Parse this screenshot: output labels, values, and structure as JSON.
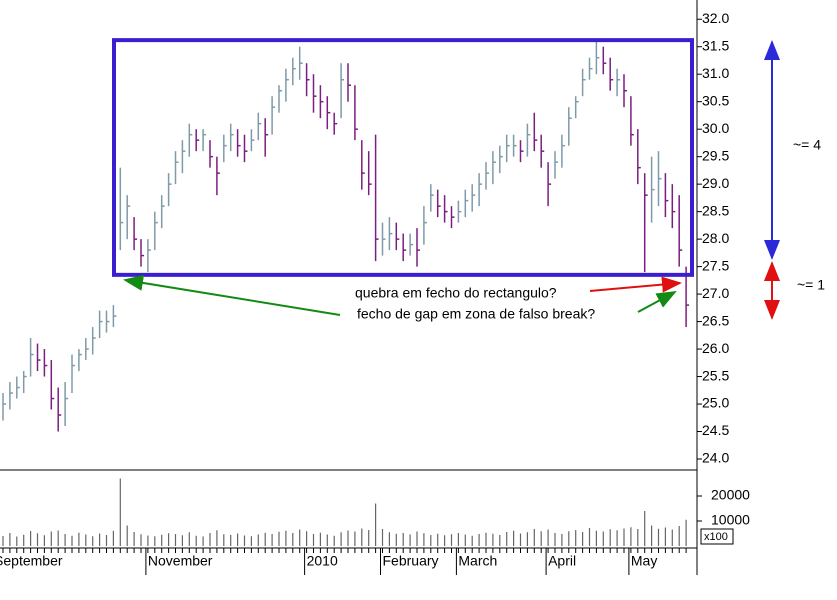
{
  "chart_data": {
    "type": "ohlc",
    "up_color": "#7f9aa8",
    "down_color": "#7a1f7f",
    "ylim": [
      23.8,
      32.35
    ],
    "yticks": [
      {
        "value": 24,
        "label": "24.0"
      },
      24.5,
      {
        "value": 25,
        "label": "25.0"
      },
      25.5,
      {
        "value": 26,
        "label": "26.0"
      },
      26.5,
      {
        "value": 27,
        "label": "27.0"
      },
      27.5,
      {
        "value": 28,
        "label": "28.0"
      },
      28.5,
      {
        "value": 29,
        "label": "29.0"
      },
      29.5,
      {
        "value": 30,
        "label": "30.0"
      },
      30.5,
      {
        "value": 31,
        "label": "31.0"
      },
      31.5,
      {
        "value": 32,
        "label": "32.0"
      }
    ],
    "high": [
      25.2,
      25.4,
      25.5,
      25.6,
      26.2,
      26.1,
      26.0,
      25.8,
      25.3,
      25.4,
      25.9,
      26.0,
      26.2,
      26.4,
      26.7,
      26.7,
      26.8,
      29.3,
      28.8,
      28.4,
      28.0,
      28.0,
      28.5,
      28.8,
      29.2,
      29.6,
      29.8,
      30.1,
      30.0,
      30.0,
      29.8,
      29.5,
      29.9,
      30.1,
      30.0,
      29.9,
      30.0,
      30.3,
      30.2,
      30.6,
      30.8,
      31.1,
      31.3,
      31.5,
      31.2,
      31.0,
      30.8,
      30.6,
      30.3,
      31.2,
      31.2,
      30.8,
      29.8,
      29.6,
      29.9,
      28.3,
      28.4,
      28.3,
      28.1,
      28.1,
      28.2,
      28.6,
      29.0,
      28.9,
      28.8,
      28.6,
      28.7,
      28.9,
      29.0,
      29.2,
      29.4,
      29.6,
      29.7,
      29.9,
      29.9,
      29.8,
      30.1,
      30.3,
      29.9,
      29.4,
      29.6,
      29.9,
      30.4,
      30.6,
      31.1,
      31.3,
      31.6,
      31.5,
      31.3,
      31.1,
      31.0,
      30.6,
      30.0,
      29.2,
      29.5,
      29.6,
      29.2,
      29.0,
      28.8,
      27.5
    ],
    "low": [
      24.7,
      24.9,
      25.1,
      25.2,
      25.5,
      25.6,
      25.5,
      24.9,
      24.5,
      24.6,
      25.2,
      25.6,
      25.8,
      25.9,
      26.2,
      26.3,
      26.4,
      27.8,
      28.0,
      27.8,
      27.5,
      27.4,
      27.8,
      28.2,
      28.6,
      29.0,
      29.2,
      29.5,
      29.6,
      29.6,
      29.3,
      28.8,
      29.4,
      29.6,
      29.5,
      29.4,
      29.6,
      29.8,
      29.5,
      29.9,
      30.3,
      30.5,
      30.8,
      30.9,
      30.6,
      30.3,
      30.2,
      30.0,
      29.9,
      30.2,
      30.5,
      29.8,
      28.9,
      28.8,
      27.6,
      27.7,
      27.8,
      27.8,
      27.6,
      27.7,
      27.5,
      27.9,
      28.5,
      28.4,
      28.3,
      28.2,
      28.3,
      28.4,
      28.5,
      28.6,
      28.9,
      29.0,
      29.2,
      29.4,
      29.5,
      29.4,
      29.5,
      29.6,
      29.3,
      28.6,
      29.1,
      29.3,
      29.7,
      30.2,
      30.6,
      30.9,
      31.0,
      31.0,
      30.7,
      30.6,
      30.4,
      29.7,
      29.0,
      27.4,
      28.3,
      28.6,
      28.4,
      28.2,
      27.5,
      26.4
    ],
    "close": [
      25.0,
      25.2,
      25.3,
      25.5,
      25.9,
      25.8,
      25.7,
      25.1,
      24.8,
      25.1,
      25.7,
      25.9,
      26.0,
      26.2,
      26.5,
      26.5,
      26.6,
      28.3,
      28.6,
      28.0,
      27.7,
      27.8,
      28.3,
      28.6,
      29.0,
      29.4,
      29.6,
      29.9,
      29.8,
      29.9,
      29.5,
      29.2,
      29.7,
      29.9,
      29.7,
      29.6,
      29.8,
      30.1,
      29.9,
      30.4,
      30.7,
      30.9,
      31.1,
      31.2,
      30.9,
      30.6,
      30.5,
      30.3,
      30.1,
      30.9,
      30.8,
      30.0,
      29.2,
      29.0,
      28.0,
      28.0,
      28.1,
      28.0,
      27.8,
      27.9,
      27.8,
      28.3,
      28.8,
      28.6,
      28.5,
      28.4,
      28.5,
      28.7,
      28.8,
      29.0,
      29.2,
      29.4,
      29.5,
      29.7,
      29.7,
      29.6,
      29.9,
      29.8,
      29.6,
      29.0,
      29.4,
      29.7,
      30.2,
      30.5,
      30.9,
      31.1,
      31.3,
      31.2,
      30.9,
      30.9,
      30.7,
      29.9,
      29.3,
      28.8,
      28.9,
      29.1,
      28.7,
      28.5,
      27.8,
      26.8
    ],
    "volume": {
      "ylim": [
        0,
        30000
      ],
      "yticks": [
        10000,
        20000
      ],
      "unit_label": "x100",
      "values": [
        4000,
        5200,
        3800,
        4500,
        6000,
        5100,
        4300,
        5800,
        6200,
        4800,
        4100,
        5300,
        4600,
        3900,
        5000,
        4400,
        6100,
        27000,
        8200,
        5600,
        4700,
        4200,
        3900,
        4500,
        5100,
        4800,
        4300,
        5500,
        4100,
        3800,
        5200,
        6300,
        4700,
        4400,
        5000,
        4200,
        3900,
        4600,
        5300,
        4800,
        5700,
        6100,
        5200,
        6600,
        5900,
        4800,
        5300,
        4600,
        4100,
        5500,
        6200,
        5800,
        7000,
        6400,
        17000,
        6800,
        5500,
        4900,
        5200,
        4600,
        5800,
        5100,
        4400,
        4900,
        4300,
        4700,
        5200,
        4600,
        4100,
        4800,
        5300,
        4900,
        4400,
        5600,
        6100,
        5000,
        5500,
        6800,
        5900,
        6600,
        5200,
        4800,
        5900,
        6400,
        5600,
        7200,
        6100,
        5800,
        6700,
        6300,
        7000,
        7500,
        6800,
        14000,
        8200,
        6900,
        7400,
        6600,
        8000,
        10500
      ]
    },
    "month_labels": [
      {
        "index": -1.3,
        "label": "September"
      },
      {
        "index": 21,
        "label": "November"
      },
      {
        "index": 44,
        "label": "2010"
      },
      {
        "index": 55,
        "label": "February"
      },
      {
        "index": 66,
        "label": "March"
      },
      {
        "index": 79,
        "label": "April"
      },
      {
        "index": 91,
        "label": "May"
      }
    ],
    "rectangle": {
      "top": 31.62,
      "bottom": 27.35,
      "color": "#3a1fd0"
    },
    "annotations": [
      {
        "text": "quebra em fecho do rectangulo?",
        "color": "#e01010"
      },
      {
        "text": "fecho de gap em zona de falso break?",
        "color": "#138a13"
      },
      {
        "text": "~= 4",
        "color": "#2a2ad8"
      },
      {
        "text": "~= 1",
        "color": "#e01010"
      }
    ]
  }
}
